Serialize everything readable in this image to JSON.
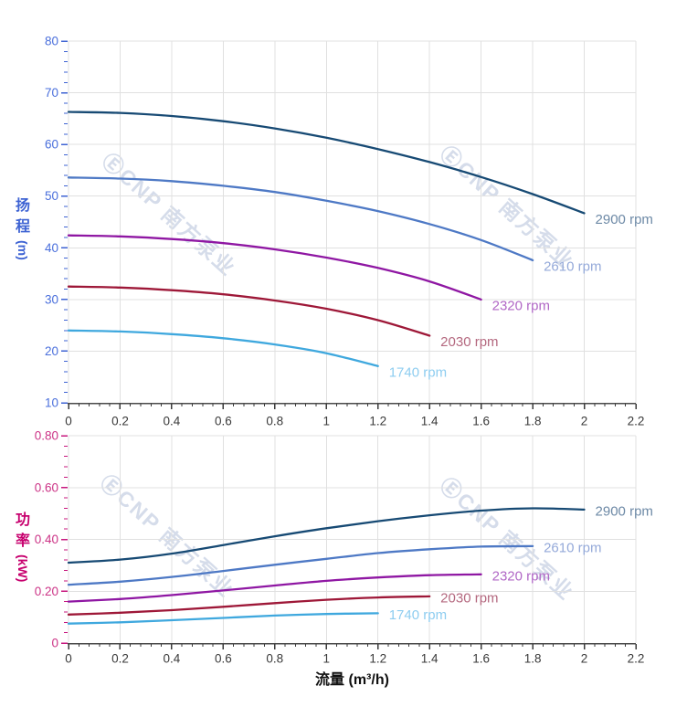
{
  "page": {
    "background": "#ffffff"
  },
  "watermark": {
    "text": "ⒺCNP 南方泵业",
    "color": "#b4c1d9"
  },
  "axes": {
    "flow_title": "流量 (m³/h)",
    "head_title_line1": "扬",
    "head_title_line2": "程",
    "head_title_unit": "(m)",
    "power_title_line1": "功",
    "power_title_line2": "率",
    "power_title_unit": "(kW)"
  },
  "chart_data": [
    {
      "type": "line",
      "title": "",
      "xlabel": "",
      "ylabel": "扬程 (m)",
      "xlim": [
        0,
        2.2
      ],
      "ylim": [
        10,
        80
      ],
      "grid": true,
      "legend_position": "curve-end-labels",
      "x_ticks": [
        0,
        0.2,
        0.4,
        0.6,
        0.8,
        1,
        1.2,
        1.4,
        1.6,
        1.8,
        2,
        2.2
      ],
      "x_tick_labels": [
        "0",
        "0.2",
        "0.4",
        "0.6",
        "0.8",
        "1",
        "1.2",
        "1.4",
        "1.6",
        "1.8",
        "2",
        "2.2"
      ],
      "x_minor_step": 0.04,
      "y_ticks": [
        10,
        20,
        30,
        40,
        50,
        60,
        70,
        80
      ],
      "y_tick_labels": [
        "10",
        "20",
        "30",
        "40",
        "50",
        "60",
        "70",
        "80"
      ],
      "y_minor_step": 2,
      "axis_color": "#3e63d3",
      "tick_label_color": "#4a6fdc",
      "x_tick_label_color": "#3a3a3a",
      "grid_color": "#e0e0e0",
      "spine_color": "#4a4a4a",
      "series": [
        {
          "name": "2900 rpm",
          "color": "#174a74",
          "label_color": "#6d89a6",
          "points": [
            [
              0,
              66.3
            ],
            [
              0.2,
              66.1
            ],
            [
              0.4,
              65.5
            ],
            [
              0.6,
              64.5
            ],
            [
              0.8,
              63.1
            ],
            [
              1.0,
              61.3
            ],
            [
              1.2,
              59.1
            ],
            [
              1.4,
              56.6
            ],
            [
              1.6,
              53.7
            ],
            [
              1.8,
              50.4
            ],
            [
              2.0,
              46.7
            ]
          ]
        },
        {
          "name": "2610 rpm",
          "color": "#4e79c5",
          "label_color": "#94a9d9",
          "points": [
            [
              0,
              53.6
            ],
            [
              0.2,
              53.4
            ],
            [
              0.4,
              52.9
            ],
            [
              0.6,
              52.0
            ],
            [
              0.8,
              50.8
            ],
            [
              1.0,
              49.1
            ],
            [
              1.2,
              47.1
            ],
            [
              1.4,
              44.6
            ],
            [
              1.6,
              41.5
            ],
            [
              1.8,
              37.6
            ]
          ]
        },
        {
          "name": "2320 rpm",
          "color": "#8f17a3",
          "label_color": "#b168c6",
          "points": [
            [
              0,
              42.4
            ],
            [
              0.2,
              42.2
            ],
            [
              0.4,
              41.7
            ],
            [
              0.6,
              40.9
            ],
            [
              0.8,
              39.7
            ],
            [
              1.0,
              38.1
            ],
            [
              1.2,
              36.1
            ],
            [
              1.4,
              33.5
            ],
            [
              1.6,
              30.0
            ]
          ]
        },
        {
          "name": "2030 rpm",
          "color": "#9e1838",
          "label_color": "#b4687f",
          "points": [
            [
              0,
              32.5
            ],
            [
              0.2,
              32.3
            ],
            [
              0.4,
              31.8
            ],
            [
              0.6,
              31.0
            ],
            [
              0.8,
              29.8
            ],
            [
              1.0,
              28.2
            ],
            [
              1.2,
              26.0
            ],
            [
              1.4,
              23.0
            ]
          ]
        },
        {
          "name": "1740 rpm",
          "color": "#3fa8de",
          "label_color": "#8ecdf0",
          "points": [
            [
              0,
              24.0
            ],
            [
              0.2,
              23.8
            ],
            [
              0.4,
              23.3
            ],
            [
              0.6,
              22.5
            ],
            [
              0.8,
              21.3
            ],
            [
              1.0,
              19.6
            ],
            [
              1.2,
              17.1
            ]
          ]
        }
      ]
    },
    {
      "type": "line",
      "title": "",
      "xlabel": "流量 (m³/h)",
      "ylabel": "功率 (kW)",
      "xlim": [
        0,
        2.2
      ],
      "ylim": [
        0,
        0.8
      ],
      "grid": true,
      "legend_position": "curve-end-labels",
      "x_ticks": [
        0,
        0.2,
        0.4,
        0.6,
        0.8,
        1,
        1.2,
        1.4,
        1.6,
        1.8,
        2,
        2.2
      ],
      "x_tick_labels": [
        "0",
        "0.2",
        "0.4",
        "0.6",
        "0.8",
        "1",
        "1.2",
        "1.4",
        "1.6",
        "1.8",
        "2",
        "2.2"
      ],
      "x_minor_step": 0.04,
      "y_ticks": [
        0,
        0.2,
        0.4,
        0.6,
        0.8
      ],
      "y_tick_labels": [
        "0",
        "0.20",
        "0.40",
        "0.60",
        "0.80"
      ],
      "y_minor_step": 0.04,
      "axis_color": "#c7177e",
      "tick_label_color": "#cc3386",
      "x_tick_label_color": "#3a3a3a",
      "grid_color": "#e0e0e0",
      "spine_color": "#4a4a4a",
      "series": [
        {
          "name": "2900 rpm",
          "color": "#174a74",
          "label_color": "#6d89a6",
          "points": [
            [
              0,
              0.31
            ],
            [
              0.2,
              0.322
            ],
            [
              0.4,
              0.345
            ],
            [
              0.6,
              0.378
            ],
            [
              0.8,
              0.412
            ],
            [
              1.0,
              0.443
            ],
            [
              1.2,
              0.47
            ],
            [
              1.4,
              0.493
            ],
            [
              1.6,
              0.511
            ],
            [
              1.8,
              0.52
            ],
            [
              2.0,
              0.515
            ]
          ]
        },
        {
          "name": "2610 rpm",
          "color": "#4e79c5",
          "label_color": "#94a9d9",
          "points": [
            [
              0,
              0.225
            ],
            [
              0.2,
              0.237
            ],
            [
              0.4,
              0.255
            ],
            [
              0.6,
              0.278
            ],
            [
              0.8,
              0.302
            ],
            [
              1.0,
              0.325
            ],
            [
              1.2,
              0.347
            ],
            [
              1.4,
              0.362
            ],
            [
              1.6,
              0.372
            ],
            [
              1.8,
              0.374
            ]
          ]
        },
        {
          "name": "2320 rpm",
          "color": "#8f17a3",
          "label_color": "#b168c6",
          "points": [
            [
              0,
              0.16
            ],
            [
              0.2,
              0.17
            ],
            [
              0.4,
              0.185
            ],
            [
              0.6,
              0.203
            ],
            [
              0.8,
              0.222
            ],
            [
              1.0,
              0.24
            ],
            [
              1.2,
              0.253
            ],
            [
              1.4,
              0.262
            ],
            [
              1.6,
              0.265
            ]
          ]
        },
        {
          "name": "2030 rpm",
          "color": "#9e1838",
          "label_color": "#b4687f",
          "points": [
            [
              0,
              0.11
            ],
            [
              0.2,
              0.117
            ],
            [
              0.4,
              0.127
            ],
            [
              0.6,
              0.14
            ],
            [
              0.8,
              0.154
            ],
            [
              1.0,
              0.167
            ],
            [
              1.2,
              0.176
            ],
            [
              1.4,
              0.18
            ]
          ]
        },
        {
          "name": "1740 rpm",
          "color": "#3fa8de",
          "label_color": "#8ecdf0",
          "points": [
            [
              0,
              0.075
            ],
            [
              0.2,
              0.08
            ],
            [
              0.4,
              0.088
            ],
            [
              0.6,
              0.097
            ],
            [
              0.8,
              0.106
            ],
            [
              1.0,
              0.112
            ],
            [
              1.2,
              0.115
            ]
          ]
        }
      ]
    }
  ]
}
